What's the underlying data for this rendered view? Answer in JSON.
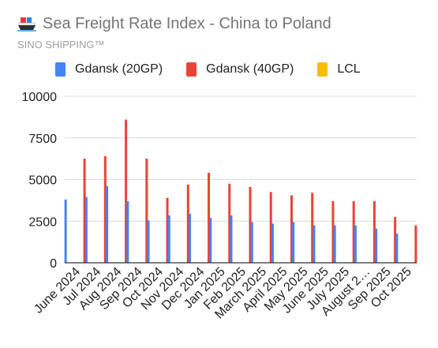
{
  "header": {
    "title": "Sea Freight Rate Index - China to Poland",
    "subtitle": "SINO SHIPPING™",
    "icon": "ship-icon"
  },
  "colors": {
    "gdansk_20gp": "#4285f4",
    "gdansk_40gp": "#ea4335",
    "lcl": "#fbbc04",
    "grid": "#d9d9d9",
    "axis": "#333333"
  },
  "chart_data": {
    "type": "bar",
    "title": "Sea Freight Rate Index - China to Poland",
    "subtitle": "SINO SHIPPING™",
    "xlabel": "",
    "ylabel": "",
    "ylim": [
      0,
      10000
    ],
    "yticks": [
      "0",
      "2500",
      "5000",
      "7500",
      "10000"
    ],
    "grid": true,
    "legend_position": "top",
    "categories": [
      "June 2024",
      "Jul 2024",
      "Aug 2024",
      "Sep 2024",
      "Oct 2024",
      "Nov 2024",
      "Dec 2024",
      "Jan 2025",
      "Feb 2025",
      "March 2025",
      "April 2025",
      "May 2025",
      "June 2025",
      "July 2025",
      "August 2…",
      "Sep 2025",
      "Oct 2025"
    ],
    "series": [
      {
        "name": "Gdansk (20GP)",
        "color": "#4285f4",
        "values": [
          3800,
          3950,
          4600,
          3700,
          2550,
          2850,
          2950,
          2700,
          2850,
          2450,
          2350,
          2450,
          2250,
          2250,
          2250,
          2050,
          1750
        ]
      },
      {
        "name": "Gdansk (40GP)",
        "color": "#ea4335",
        "values": [
          6250,
          6400,
          8600,
          6250,
          3900,
          4700,
          5400,
          4750,
          4550,
          4250,
          4050,
          4200,
          3700,
          3700,
          3700,
          2750,
          2250
        ]
      },
      {
        "name": "LCL",
        "color": "#fbbc04",
        "values": [
          null,
          null,
          null,
          null,
          null,
          null,
          null,
          null,
          null,
          null,
          null,
          null,
          null,
          null,
          null,
          null,
          null
        ]
      }
    ]
  }
}
